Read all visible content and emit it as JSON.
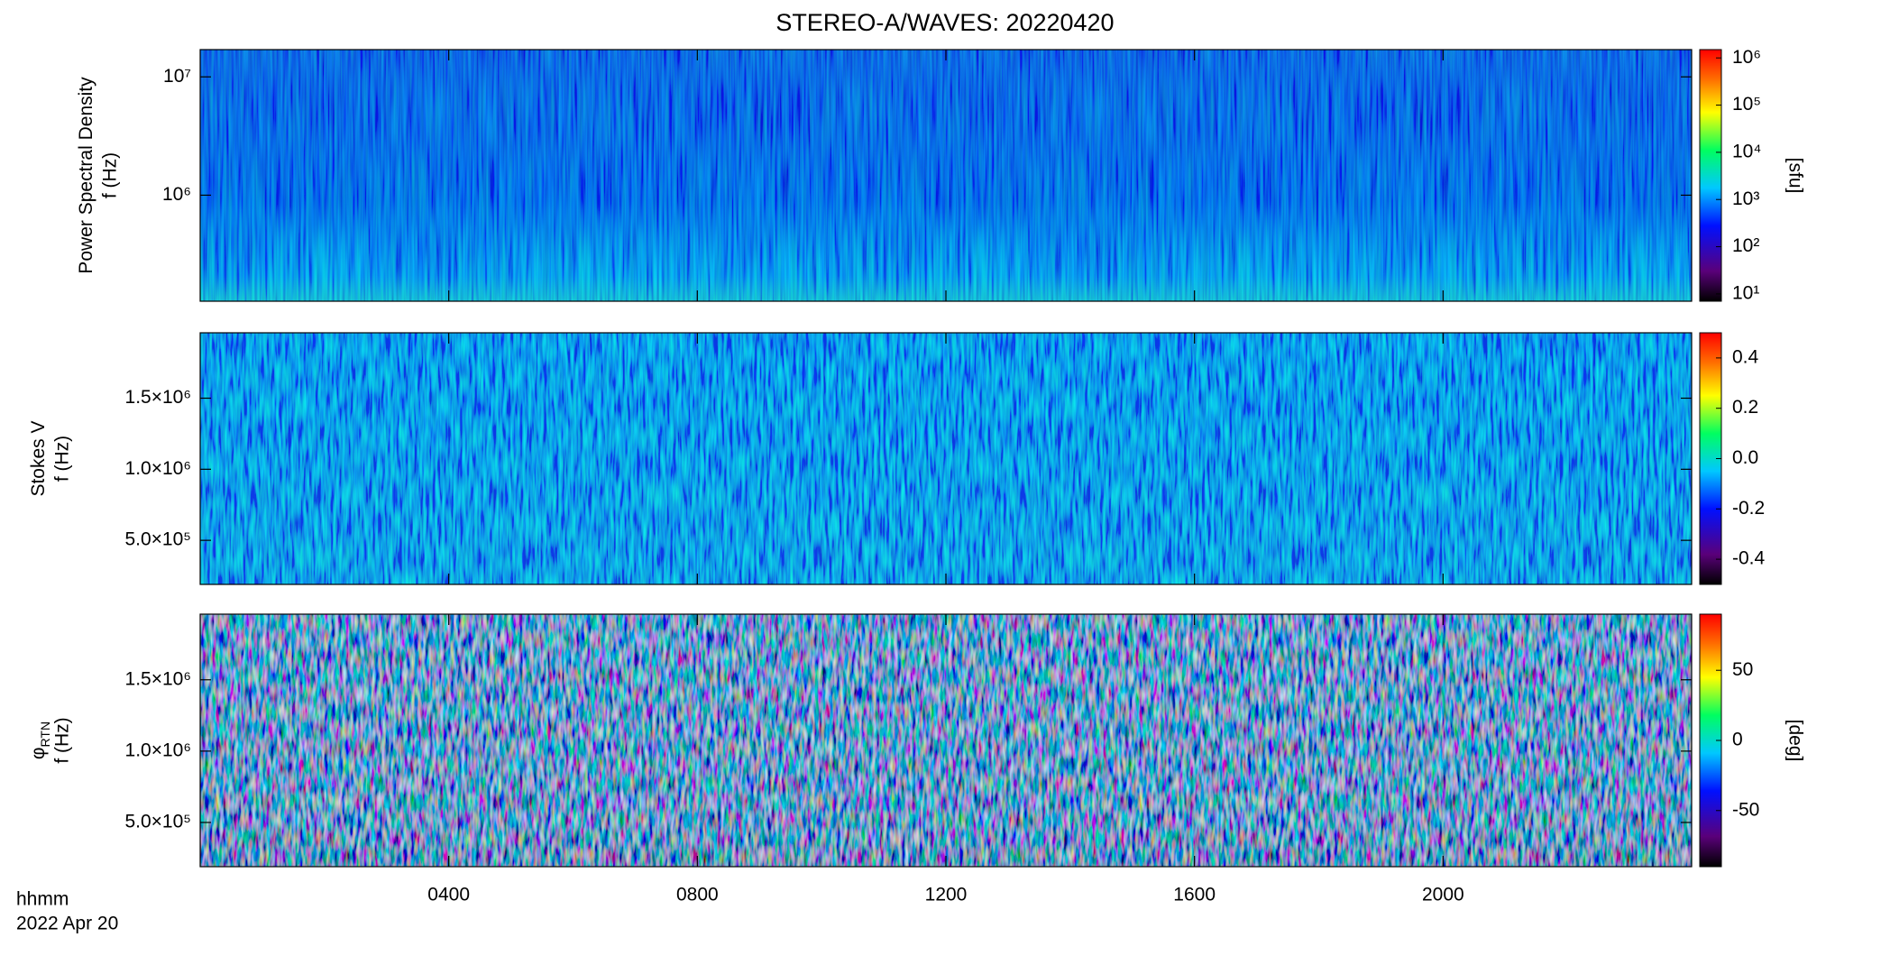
{
  "title": "STEREO-A/WAVES: 20220420",
  "x_label": "hhmm",
  "date_label": "2022 Apr 20",
  "chart_data": [
    {
      "type": "heatmap",
      "ylabel": "Power Spectral Density",
      "ylabel2": "f (Hz)",
      "ylog": true,
      "ylim": [
        127000,
        17000000
      ],
      "yticks": [
        {
          "value": 1000000,
          "label": "10⁶"
        },
        {
          "value": 10000000,
          "label": "10⁷"
        }
      ],
      "zlog": true,
      "zlim": [
        7,
        1500000
      ],
      "zlabel": "[sfu]",
      "zticks": [
        {
          "value": 10,
          "label": "10¹"
        },
        {
          "value": 100,
          "label": "10²"
        },
        {
          "value": 1000,
          "label": "10³"
        },
        {
          "value": 10000,
          "label": "10⁴"
        },
        {
          "value": 100000,
          "label": "10⁵"
        },
        {
          "value": 1000000,
          "label": "10⁶"
        }
      ]
    },
    {
      "type": "heatmap",
      "ylabel": "Stokes V",
      "ylabel2": "f (Hz)",
      "ylog": false,
      "ylim": [
        190000,
        1960000
      ],
      "yticks": [
        {
          "value": 500000,
          "label": "5.0×10⁵"
        },
        {
          "value": 1000000,
          "label": "1.0×10⁶"
        },
        {
          "value": 1500000,
          "label": "1.5×10⁶"
        }
      ],
      "zlog": false,
      "zlim": [
        -0.5,
        0.5
      ],
      "zticks": [
        -0.4,
        -0.2,
        {
          "value": 0,
          "label": "0.0"
        },
        0.2,
        0.4
      ]
    },
    {
      "type": "heatmap",
      "ylabel": "φ",
      "ylabel_sub": "RTN",
      "ylabel2": "f (Hz)",
      "ylog": false,
      "ylim": [
        190000,
        1960000
      ],
      "yticks": [
        {
          "value": 500000,
          "label": "5.0×10⁵"
        },
        {
          "value": 1000000,
          "label": "1.0×10⁶"
        },
        {
          "value": 1500000,
          "label": "1.5×10⁶"
        }
      ],
      "zlog": false,
      "zlim": [
        -90,
        90
      ],
      "zlabel": "[deg]",
      "zticks": [
        -50,
        0,
        50
      ],
      "xlim": [
        0,
        24
      ],
      "xticks": [
        {
          "value": 4,
          "label": "0400"
        },
        {
          "value": 8,
          "label": "0800"
        },
        {
          "value": 12,
          "label": "1200"
        },
        {
          "value": 16,
          "label": "1600"
        },
        {
          "value": 20,
          "label": "2000"
        }
      ]
    }
  ]
}
